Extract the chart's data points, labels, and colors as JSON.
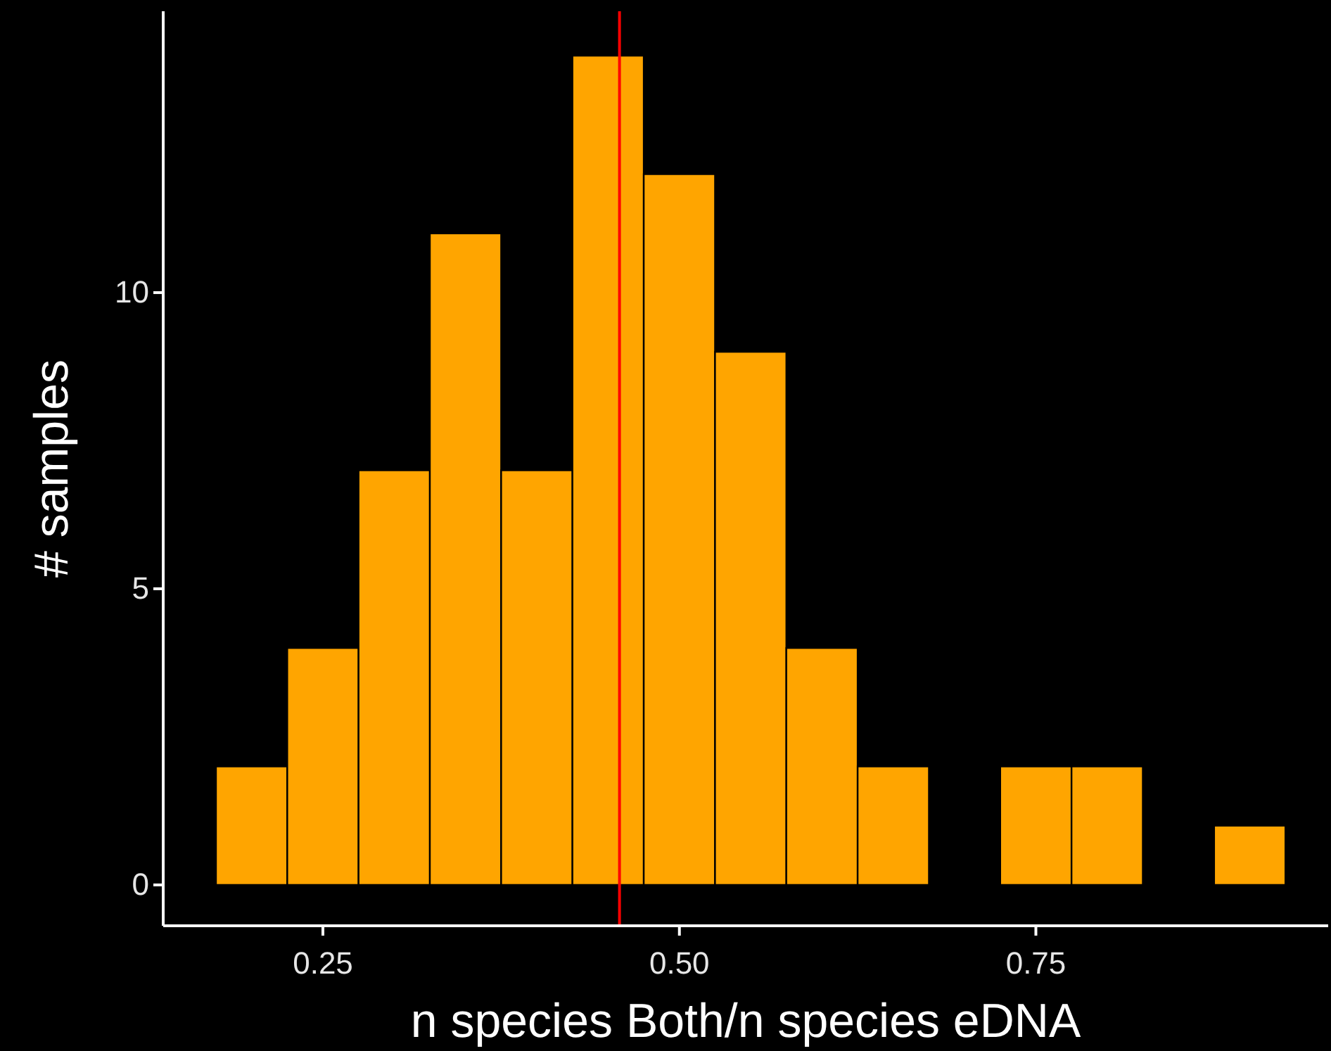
{
  "chart_data": {
    "type": "histogram",
    "xlabel": "n species Both/n species eDNA",
    "ylabel": "# samples",
    "bins": [
      0.175,
      0.225,
      0.275,
      0.325,
      0.375,
      0.425,
      0.475,
      0.525,
      0.575,
      0.625,
      0.675,
      0.725,
      0.775,
      0.825,
      0.875,
      0.925
    ],
    "values": [
      2,
      4,
      7,
      11,
      7,
      14,
      12,
      9,
      4,
      2,
      0,
      2,
      2,
      0,
      1
    ],
    "color": "#ffa500",
    "xlim": [
      0.138,
      0.955
    ],
    "ylim": [
      -0.69,
      14.75
    ],
    "xticks": [
      {
        "value": 0.25,
        "label": "0.25"
      },
      {
        "value": 0.5,
        "label": "0.50"
      },
      {
        "value": 0.75,
        "label": "0.75"
      }
    ],
    "yticks": [
      0,
      5,
      10
    ],
    "ref_lines": [
      {
        "axis": "x",
        "value": 0.458,
        "color": "#ff0000"
      }
    ],
    "grid": false
  }
}
